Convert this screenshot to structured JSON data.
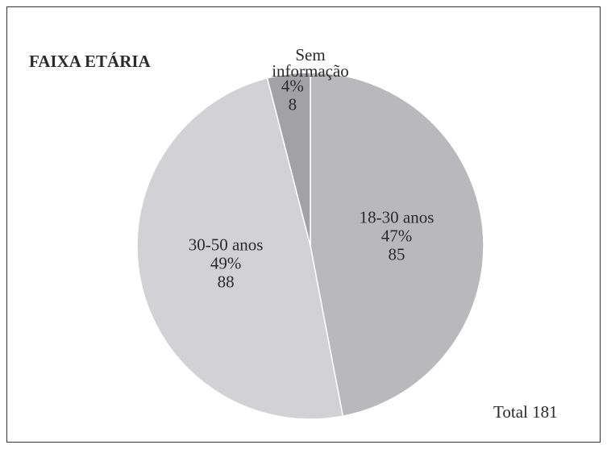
{
  "chart_data": {
    "type": "pie",
    "title": "FAIXA ETÁRIA",
    "categories": [
      "18-30 anos",
      "30-50 anos",
      "Sem informação"
    ],
    "values": [
      47,
      49,
      4
    ],
    "value_labels": [
      "47%",
      "49%",
      "4%"
    ],
    "counts": [
      85,
      88,
      8
    ],
    "colors": [
      "#b9b9bb",
      "#d2d2d4",
      "#a2a2a4"
    ],
    "annotation": "Total 181"
  }
}
